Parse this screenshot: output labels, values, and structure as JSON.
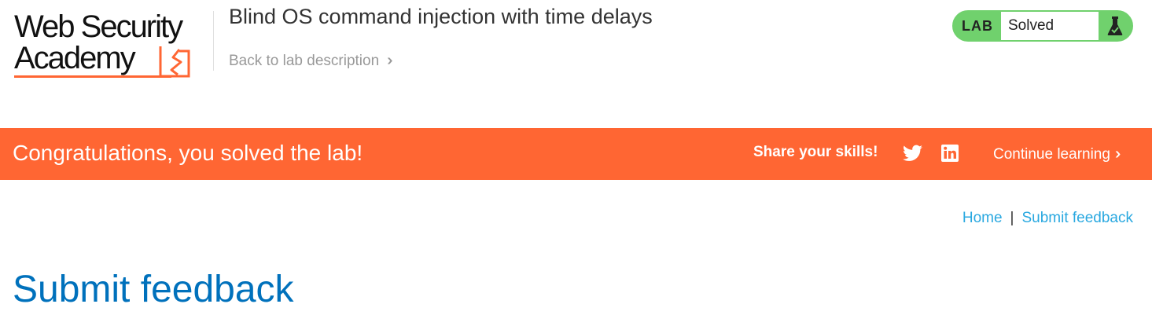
{
  "header": {
    "logo": {
      "line1": "Web Security",
      "line2": "Academy"
    },
    "lab_title": "Blind OS command injection with time delays",
    "back_link": "Back to lab description",
    "lab_status": {
      "label": "LAB",
      "value": "Solved",
      "icon": "flask-icon"
    }
  },
  "banner": {
    "message": "Congratulations, you solved the lab!",
    "share_label": "Share your skills!",
    "share_icons": [
      "twitter-icon",
      "linkedin-icon"
    ],
    "continue_label": "Continue learning"
  },
  "nav": {
    "home": "Home",
    "separator": "|",
    "submit_feedback": "Submit feedback"
  },
  "page": {
    "heading": "Submit feedback"
  },
  "colors": {
    "brand_orange": "#ff6633",
    "lab_green": "#70d16d",
    "link_blue": "#29a8e0",
    "heading_blue": "#0071bc"
  }
}
